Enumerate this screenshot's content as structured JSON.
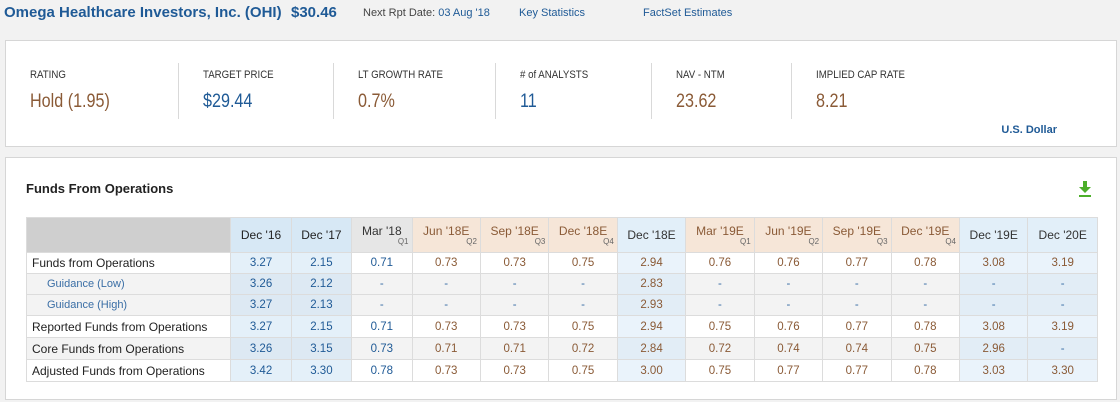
{
  "header": {
    "company": "Omega Healthcare Investors, Inc. (OHI)",
    "price": "$30.46",
    "next_rpt_label": "Next Rpt Date:",
    "next_rpt_value": "03 Aug '18",
    "link_key_stats": "Key Statistics",
    "link_factset": "FactSet Estimates"
  },
  "stats": [
    {
      "label": "RATING",
      "value": "Hold (1.95)",
      "color": "#8a5a36"
    },
    {
      "label": "TARGET PRICE",
      "value": "$29.44",
      "color": "#1f5a96"
    },
    {
      "label": "LT GROWTH RATE",
      "value": "0.7%",
      "color": "#8a5a36"
    },
    {
      "label": "# of ANALYSTS",
      "value": "11",
      "color": "#1f5a96"
    },
    {
      "label": "NAV - NTM",
      "value": "23.62",
      "color": "#8a5a36"
    },
    {
      "label": "IMPLIED CAP RATE",
      "value": "8.21",
      "color": "#8a5a36"
    }
  ],
  "currency": "U.S. Dollar",
  "ffo": {
    "title": "Funds From Operations",
    "download_icon": "download-icon",
    "columns": [
      {
        "label": "Dec '16",
        "q": "",
        "kind": "act"
      },
      {
        "label": "Dec '17",
        "q": "",
        "kind": "act"
      },
      {
        "label": "Mar '18",
        "q": "Q1",
        "kind": "qe"
      },
      {
        "label": "Jun '18E",
        "q": "Q2",
        "kind": "est"
      },
      {
        "label": "Sep '18E",
        "q": "Q3",
        "kind": "est"
      },
      {
        "label": "Dec '18E",
        "q": "Q4",
        "kind": "est"
      },
      {
        "label": "Dec '18E",
        "q": "",
        "kind": "ann"
      },
      {
        "label": "Mar '19E",
        "q": "Q1",
        "kind": "est"
      },
      {
        "label": "Jun '19E",
        "q": "Q2",
        "kind": "est"
      },
      {
        "label": "Sep '19E",
        "q": "Q3",
        "kind": "est"
      },
      {
        "label": "Dec '19E",
        "q": "Q4",
        "kind": "est"
      },
      {
        "label": "Dec '19E",
        "q": "",
        "kind": "ann"
      },
      {
        "label": "Dec '20E",
        "q": "",
        "kind": "ann"
      }
    ],
    "rows": [
      {
        "label": "Funds from Operations",
        "sub": false,
        "values": [
          "3.27",
          "2.15",
          "0.71",
          "0.73",
          "0.73",
          "0.75",
          "2.94",
          "0.76",
          "0.76",
          "0.77",
          "0.78",
          "3.08",
          "3.19"
        ]
      },
      {
        "label": "Guidance (Low)",
        "sub": true,
        "values": [
          "3.26",
          "2.12",
          "-",
          "-",
          "-",
          "-",
          "2.83",
          "-",
          "-",
          "-",
          "-",
          "-",
          "-"
        ]
      },
      {
        "label": "Guidance (High)",
        "sub": true,
        "values": [
          "3.27",
          "2.13",
          "-",
          "-",
          "-",
          "-",
          "2.93",
          "-",
          "-",
          "-",
          "-",
          "-",
          "-"
        ]
      },
      {
        "label": "Reported Funds from Operations",
        "sub": false,
        "values": [
          "3.27",
          "2.15",
          "0.71",
          "0.73",
          "0.73",
          "0.75",
          "2.94",
          "0.75",
          "0.76",
          "0.77",
          "0.78",
          "3.08",
          "3.19"
        ]
      },
      {
        "label": "Core Funds from Operations",
        "sub": false,
        "values": [
          "3.26",
          "3.15",
          "0.73",
          "0.71",
          "0.71",
          "0.72",
          "2.84",
          "0.72",
          "0.74",
          "0.74",
          "0.75",
          "2.96",
          "-"
        ]
      },
      {
        "label": "Adjusted Funds from Operations",
        "sub": false,
        "values": [
          "3.42",
          "3.30",
          "0.78",
          "0.73",
          "0.73",
          "0.75",
          "3.00",
          "0.75",
          "0.77",
          "0.77",
          "0.78",
          "3.03",
          "3.30"
        ]
      }
    ]
  }
}
